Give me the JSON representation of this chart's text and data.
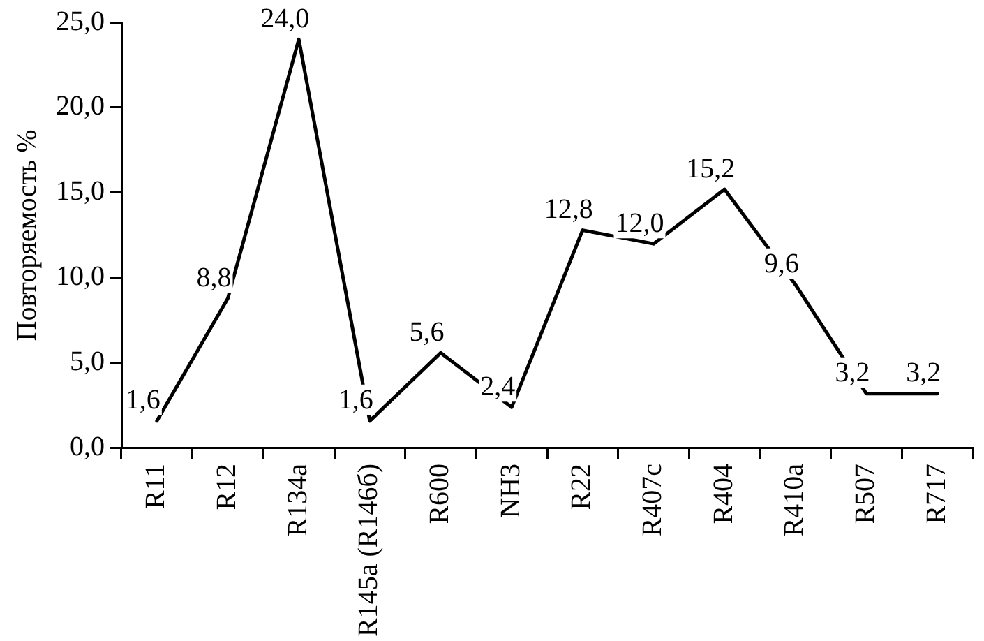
{
  "chart_data": {
    "type": "line",
    "ylabel": "Повторяемость %",
    "categories": [
      "R11",
      "R12",
      "R134a",
      "R145a (R146б)",
      "R600",
      "NH3",
      "R22",
      "R407c",
      "R404",
      "R410a",
      "R507",
      "R717"
    ],
    "series": [
      {
        "color": "#000000",
        "values": [
          1.6,
          8.8,
          24.0,
          1.6,
          5.6,
          2.4,
          12.8,
          12.0,
          15.2,
          9.6,
          3.2,
          3.2
        ],
        "value_labels": [
          "1,6",
          "8,8",
          "24,0",
          "1,6",
          "5,6",
          "2,4",
          "12,8",
          "12,0",
          "15,2",
          "9,6",
          "3,2",
          "3,2"
        ]
      }
    ],
    "ylim": [
      0,
      25
    ],
    "yticks": [
      {
        "value": 0,
        "label": "0,0"
      },
      {
        "value": 5,
        "label": "5,0"
      },
      {
        "value": 10,
        "label": "10,0"
      },
      {
        "value": 15,
        "label": "15,0"
      },
      {
        "value": 20,
        "label": "20,0"
      },
      {
        "value": 25,
        "label": "25,0"
      }
    ],
    "grid": false,
    "legend": false,
    "marker": "none",
    "line_style": "solid"
  }
}
